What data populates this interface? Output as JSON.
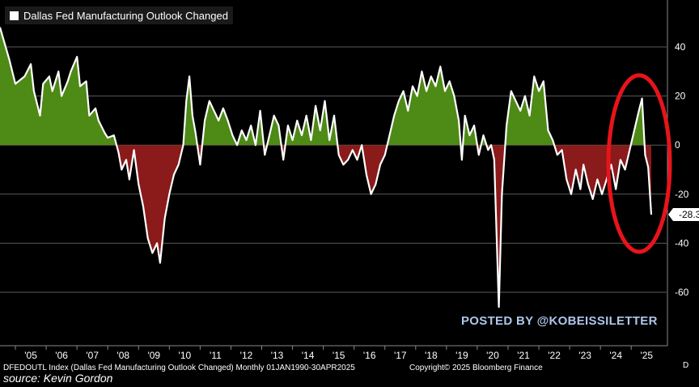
{
  "chart_data": {
    "type": "area",
    "title": "Dallas Fed Manufacturing Outlook Changed",
    "legend": [
      "Dallas Fed Manufacturing Outlook Changed"
    ],
    "ylim": [
      -70,
      50
    ],
    "yticks": [
      40,
      20,
      0,
      -20,
      -40,
      -60
    ],
    "xticks": [
      "'05",
      "'06",
      "'07",
      "'08",
      "'09",
      "'10",
      "'11",
      "'12",
      "'13",
      "'14",
      "'15",
      "'16",
      "'17",
      "'18",
      "'19",
      "'20",
      "'21",
      "'22",
      "'23",
      "'24",
      "'25"
    ],
    "last_value_label": "-28.3",
    "grid": true,
    "positive_color": "#4e8a16",
    "negative_color": "#8b1a1a",
    "line_color": "#ffffff",
    "series": [
      {
        "values": [
          [
            2004.0,
            48
          ],
          [
            2004.3,
            35
          ],
          [
            2004.5,
            25
          ],
          [
            2004.8,
            28
          ],
          [
            2005.0,
            33
          ],
          [
            2005.1,
            22
          ],
          [
            2005.3,
            12
          ],
          [
            2005.4,
            25
          ],
          [
            2005.6,
            28
          ],
          [
            2005.7,
            22
          ],
          [
            2005.9,
            30
          ],
          [
            2006.0,
            20
          ],
          [
            2006.2,
            26
          ],
          [
            2006.3,
            30
          ],
          [
            2006.5,
            36
          ],
          [
            2006.6,
            24
          ],
          [
            2006.8,
            26
          ],
          [
            2006.9,
            12
          ],
          [
            2007.1,
            15
          ],
          [
            2007.2,
            10
          ],
          [
            2007.4,
            5
          ],
          [
            2007.5,
            3
          ],
          [
            2007.7,
            4
          ],
          [
            2007.85,
            -3
          ],
          [
            2007.95,
            -10
          ],
          [
            2008.1,
            -6
          ],
          [
            2008.2,
            -14
          ],
          [
            2008.35,
            -2
          ],
          [
            2008.5,
            -16
          ],
          [
            2008.65,
            -25
          ],
          [
            2008.8,
            -38
          ],
          [
            2008.95,
            -44
          ],
          [
            2009.1,
            -40
          ],
          [
            2009.2,
            -48
          ],
          [
            2009.35,
            -30
          ],
          [
            2009.5,
            -20
          ],
          [
            2009.65,
            -12
          ],
          [
            2009.8,
            -8
          ],
          [
            2009.95,
            0
          ],
          [
            2010.05,
            18
          ],
          [
            2010.15,
            28
          ],
          [
            2010.25,
            12
          ],
          [
            2010.35,
            5
          ],
          [
            2010.5,
            -8
          ],
          [
            2010.65,
            10
          ],
          [
            2010.8,
            18
          ],
          [
            2010.95,
            14
          ],
          [
            2011.1,
            10
          ],
          [
            2011.25,
            15
          ],
          [
            2011.4,
            10
          ],
          [
            2011.55,
            4
          ],
          [
            2011.7,
            0
          ],
          [
            2011.85,
            6
          ],
          [
            2012.0,
            2
          ],
          [
            2012.15,
            8
          ],
          [
            2012.3,
            0
          ],
          [
            2012.45,
            14
          ],
          [
            2012.6,
            -4
          ],
          [
            2012.75,
            4
          ],
          [
            2012.9,
            12
          ],
          [
            2013.05,
            8
          ],
          [
            2013.2,
            -6
          ],
          [
            2013.35,
            8
          ],
          [
            2013.5,
            2
          ],
          [
            2013.65,
            10
          ],
          [
            2013.8,
            4
          ],
          [
            2013.95,
            12
          ],
          [
            2014.1,
            2
          ],
          [
            2014.25,
            16
          ],
          [
            2014.4,
            6
          ],
          [
            2014.55,
            18
          ],
          [
            2014.7,
            2
          ],
          [
            2014.85,
            12
          ],
          [
            2015.0,
            -4
          ],
          [
            2015.15,
            -8
          ],
          [
            2015.3,
            -6
          ],
          [
            2015.45,
            -2
          ],
          [
            2015.6,
            -6
          ],
          [
            2015.75,
            0
          ],
          [
            2015.9,
            -12
          ],
          [
            2016.05,
            -20
          ],
          [
            2016.2,
            -16
          ],
          [
            2016.35,
            -8
          ],
          [
            2016.5,
            -4
          ],
          [
            2016.65,
            4
          ],
          [
            2016.8,
            12
          ],
          [
            2016.95,
            18
          ],
          [
            2017.1,
            22
          ],
          [
            2017.25,
            14
          ],
          [
            2017.4,
            24
          ],
          [
            2017.55,
            20
          ],
          [
            2017.7,
            30
          ],
          [
            2017.85,
            22
          ],
          [
            2018.0,
            28
          ],
          [
            2018.15,
            24
          ],
          [
            2018.3,
            32
          ],
          [
            2018.45,
            22
          ],
          [
            2018.6,
            26
          ],
          [
            2018.75,
            20
          ],
          [
            2018.9,
            10
          ],
          [
            2019.0,
            -6
          ],
          [
            2019.1,
            12
          ],
          [
            2019.25,
            4
          ],
          [
            2019.4,
            8
          ],
          [
            2019.55,
            -4
          ],
          [
            2019.7,
            4
          ],
          [
            2019.85,
            -2
          ],
          [
            2019.95,
            0
          ],
          [
            2020.05,
            -6
          ],
          [
            2020.2,
            -66
          ],
          [
            2020.3,
            -20
          ],
          [
            2020.45,
            8
          ],
          [
            2020.6,
            22
          ],
          [
            2020.75,
            18
          ],
          [
            2020.9,
            14
          ],
          [
            2021.05,
            20
          ],
          [
            2021.2,
            12
          ],
          [
            2021.35,
            28
          ],
          [
            2021.5,
            22
          ],
          [
            2021.65,
            26
          ],
          [
            2021.8,
            6
          ],
          [
            2021.95,
            2
          ],
          [
            2022.1,
            -4
          ],
          [
            2022.25,
            -2
          ],
          [
            2022.4,
            -14
          ],
          [
            2022.55,
            -20
          ],
          [
            2022.7,
            -10
          ],
          [
            2022.85,
            -18
          ],
          [
            2022.95,
            -8
          ],
          [
            2023.1,
            -16
          ],
          [
            2023.25,
            -22
          ],
          [
            2023.4,
            -14
          ],
          [
            2023.55,
            -20
          ],
          [
            2023.7,
            -14
          ],
          [
            2023.85,
            -8
          ],
          [
            2024.0,
            -18
          ],
          [
            2024.15,
            -6
          ],
          [
            2024.3,
            -10
          ],
          [
            2024.45,
            -2
          ],
          [
            2024.6,
            6
          ],
          [
            2024.75,
            14
          ],
          [
            2024.85,
            19
          ],
          [
            2024.95,
            -4
          ],
          [
            2025.05,
            -9
          ],
          [
            2025.15,
            -28.3
          ]
        ]
      }
    ]
  },
  "watermark": "POSTED BY @KOBEISSILETTER",
  "footer": {
    "left": "DFEDOUTL Index (Dallas Fed Manufacturing Outlook Changed)  Monthly 01JAN1990-30APR2025",
    "right": "Copyright© 2025 Bloomberg Finance",
    "end": "D",
    "source": "source: Kevin Gordon"
  }
}
